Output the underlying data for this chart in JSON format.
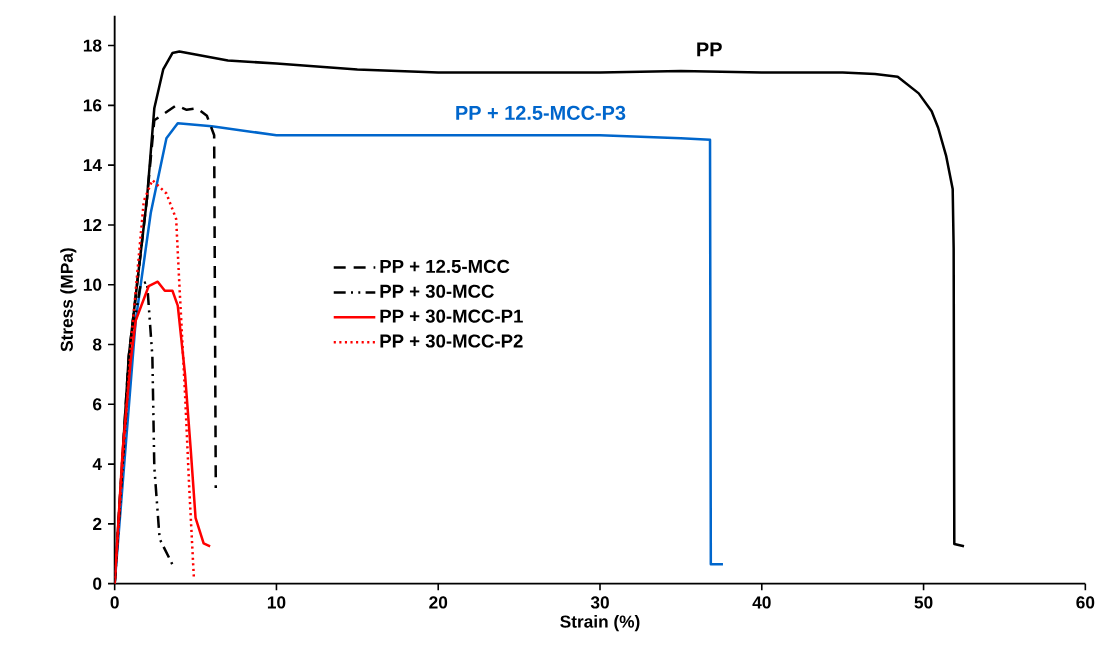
{
  "chart_data": {
    "type": "line",
    "xlabel": "Strain (%)",
    "ylabel": "Stress (MPa)",
    "xlim": [
      0,
      60
    ],
    "ylim": [
      0,
      19
    ],
    "xticks": [
      0,
      10,
      20,
      30,
      40,
      50,
      60
    ],
    "yticks": [
      0,
      2,
      4,
      6,
      8,
      10,
      12,
      14,
      16,
      18
    ],
    "grid": false,
    "legend": "center",
    "marker": "none",
    "series": [
      {
        "name": "PP",
        "color": "#000000",
        "line_style": "solid",
        "x": [
          0,
          0.87,
          2.0,
          2.45,
          3.0,
          3.57,
          4.0,
          5,
          7,
          10,
          15,
          20,
          25,
          30,
          35,
          40,
          45,
          47,
          48.4,
          49.7,
          50.5,
          50.9,
          51.4,
          51.8,
          51.86,
          51.9,
          52.5
        ],
        "values": [
          0,
          7.6,
          12.9,
          15.9,
          17.2,
          17.75,
          17.8,
          17.7,
          17.5,
          17.4,
          17.2,
          17.1,
          17.1,
          17.1,
          17.15,
          17.1,
          17.1,
          17.05,
          16.96,
          16.4,
          15.8,
          15.25,
          14.3,
          13.2,
          11.2,
          1.33,
          1.25
        ]
      },
      {
        "name": "PP + 12.5-MCC-P3",
        "color": "#0066cc",
        "line_style": "solid",
        "x": [
          0,
          1.3,
          2.23,
          3.2,
          3.9,
          6,
          10,
          20,
          30,
          35,
          36.8,
          36.85,
          37.6
        ],
        "values": [
          0,
          8.8,
          12.4,
          14.9,
          15.4,
          15.3,
          15.0,
          15.0,
          15.0,
          14.9,
          14.85,
          0.65,
          0.65
        ]
      },
      {
        "name": "PP + 12.5-MCC",
        "color": "#000000",
        "line_style": "dashed",
        "x": [
          0,
          0.87,
          2.0,
          2.45,
          3.8,
          4.45,
          5.1,
          5.7,
          6.15,
          6.25
        ],
        "values": [
          0,
          7.6,
          12.9,
          15.5,
          16.0,
          15.85,
          15.9,
          15.65,
          15.0,
          3.2
        ]
      },
      {
        "name": "PP + 30-MCC",
        "color": "#000000",
        "line_style": "dashdot",
        "x": [
          0,
          1.0,
          1.6,
          2.0,
          2.33,
          2.45,
          2.78,
          3.7
        ],
        "values": [
          0,
          8.0,
          10.0,
          10.1,
          7.6,
          3.9,
          1.5,
          0.5
        ]
      },
      {
        "name": "PP + 30-MCC-P1",
        "color": "#ff0000",
        "line_style": "solid",
        "x": [
          0,
          0.5,
          1.0,
          1.3,
          2.1,
          2.66,
          3.1,
          3.57,
          3.9,
          4.35,
          4.7,
          5.0,
          5.5,
          5.9
        ],
        "values": [
          0,
          4.5,
          7.5,
          8.8,
          9.95,
          10.1,
          9.8,
          9.8,
          9.3,
          7.0,
          4.5,
          2.2,
          1.35,
          1.25
        ]
      },
      {
        "name": "PP + 30-MCC-P2",
        "color": "#ff0000",
        "line_style": "dotted",
        "x": [
          0,
          1.0,
          1.8,
          2.33,
          3.2,
          3.8,
          4.0,
          4.35,
          4.6,
          4.9
        ],
        "values": [
          0,
          8.0,
          12.8,
          13.5,
          13.05,
          12.2,
          10.0,
          6.35,
          3.3,
          0.15
        ]
      }
    ]
  }
}
